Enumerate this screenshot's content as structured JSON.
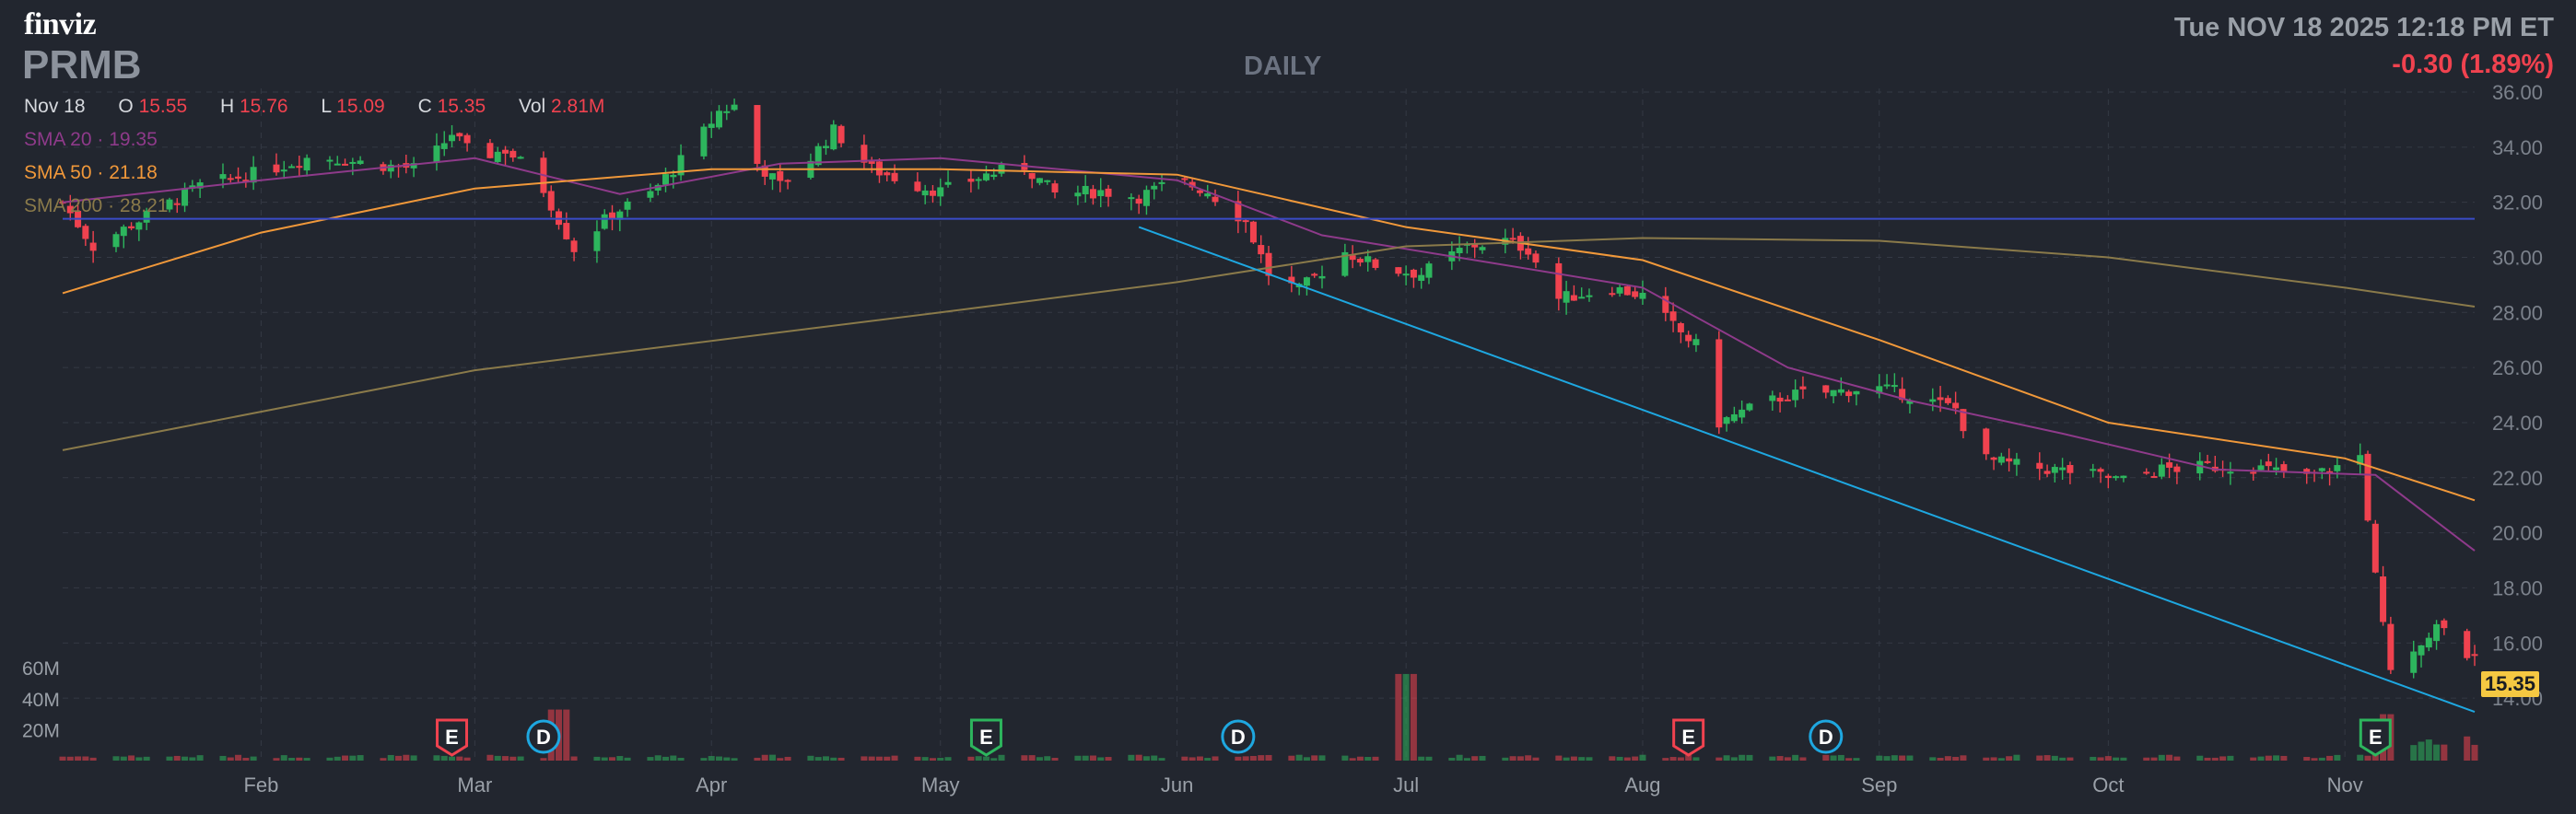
{
  "brand": "finviz",
  "ticker": "PRMB",
  "timeframe": "DAILY",
  "datetime": "Tue NOV 18 2025 12:18 PM ET",
  "change": "-0.30 (1.89%)",
  "ohlc": {
    "date": "Nov 18",
    "o_label": "O",
    "o": "15.55",
    "h_label": "H",
    "h": "15.76",
    "l_label": "L",
    "l": "15.09",
    "c_label": "C",
    "c": "15.35",
    "vol_label": "Vol",
    "vol": "2.81M"
  },
  "sma": [
    {
      "label": "SMA 20",
      "value": "19.35",
      "color": "#8e3a8a"
    },
    {
      "label": "SMA 50",
      "value": "21.18",
      "color": "#f0983a"
    },
    {
      "label": "SMA 200",
      "value": "28.21",
      "color": "#8a7a4a"
    }
  ],
  "last_price_label": "15.35",
  "colors": {
    "up": "#2db55d",
    "down": "#f0424f",
    "trendline": "#1ea7e0",
    "hline": "#3a4bc8",
    "bg": "#22262f"
  },
  "chart_data": {
    "type": "candlestick",
    "ylim": [
      13,
      36
    ],
    "y_ticks": [
      "36.00",
      "34.00",
      "32.00",
      "30.00",
      "28.00",
      "26.00",
      "24.00",
      "22.00",
      "20.00",
      "18.00",
      "16.00",
      "14.00"
    ],
    "volume_ticks": [
      "60M",
      "40M",
      "20M"
    ],
    "x_tick_labels": [
      {
        "label": "Feb",
        "x": "2025-02-01"
      },
      {
        "label": "Mar",
        "x": "2025-03-01"
      },
      {
        "label": "Apr",
        "x": "2025-04-01"
      },
      {
        "label": "May",
        "x": "2025-05-01"
      },
      {
        "label": "Jun",
        "x": "2025-06-01"
      },
      {
        "label": "Jul",
        "x": "2025-07-01"
      },
      {
        "label": "Aug",
        "x": "2025-08-01"
      },
      {
        "label": "Sep",
        "x": "2025-09-01"
      },
      {
        "label": "Oct",
        "x": "2025-10-01"
      },
      {
        "label": "Nov",
        "x": "2025-11-01"
      }
    ],
    "x_range": [
      "2025-01-06",
      "2025-11-18"
    ],
    "close_anchors": [
      [
        "2025-01-06",
        32.0
      ],
      [
        "2025-01-10",
        30.4
      ],
      [
        "2025-01-17",
        31.5
      ],
      [
        "2025-01-24",
        32.6
      ],
      [
        "2025-02-01",
        33.1
      ],
      [
        "2025-02-08",
        33.7
      ],
      [
        "2025-02-15",
        33.4
      ],
      [
        "2025-02-22",
        33.2
      ],
      [
        "2025-02-26",
        34.5
      ],
      [
        "2025-03-01",
        33.6
      ],
      [
        "2025-03-05",
        33.9
      ],
      [
        "2025-03-09",
        33.0
      ],
      [
        "2025-03-14",
        30.3
      ],
      [
        "2025-03-19",
        31.6
      ],
      [
        "2025-03-24",
        32.3
      ],
      [
        "2025-03-29",
        33.8
      ],
      [
        "2025-04-02",
        35.3
      ],
      [
        "2025-04-04",
        35.5
      ],
      [
        "2025-04-07",
        33.4
      ],
      [
        "2025-04-10",
        32.6
      ],
      [
        "2025-04-14",
        33.6
      ],
      [
        "2025-04-17",
        34.6
      ],
      [
        "2025-04-22",
        33.2
      ],
      [
        "2025-04-28",
        32.6
      ],
      [
        "2025-05-01",
        32.4
      ],
      [
        "2025-05-07",
        33.0
      ],
      [
        "2025-05-12",
        33.3
      ],
      [
        "2025-05-16",
        32.3
      ],
      [
        "2025-05-22",
        32.4
      ],
      [
        "2025-05-27",
        32.2
      ],
      [
        "2025-06-01",
        32.8
      ],
      [
        "2025-06-05",
        32.4
      ],
      [
        "2025-06-10",
        31.3
      ],
      [
        "2025-06-13",
        29.4
      ],
      [
        "2025-06-17",
        28.8
      ],
      [
        "2025-06-23",
        30.2
      ],
      [
        "2025-06-28",
        29.6
      ],
      [
        "2025-07-03",
        29.4
      ],
      [
        "2025-07-09",
        30.4
      ],
      [
        "2025-07-14",
        30.6
      ],
      [
        "2025-07-17",
        30.3
      ],
      [
        "2025-07-21",
        28.5
      ],
      [
        "2025-07-28",
        28.9
      ],
      [
        "2025-08-01",
        28.6
      ],
      [
        "2025-08-05",
        27.5
      ],
      [
        "2025-08-08",
        26.8
      ],
      [
        "2025-08-11",
        24.0
      ],
      [
        "2025-08-15",
        24.5
      ],
      [
        "2025-08-20",
        25.0
      ],
      [
        "2025-08-26",
        25.1
      ],
      [
        "2025-08-31",
        25.3
      ],
      [
        "2025-09-05",
        25.0
      ],
      [
        "2025-09-11",
        24.5
      ],
      [
        "2025-09-14",
        22.7
      ],
      [
        "2025-09-20",
        22.4
      ],
      [
        "2025-09-27",
        22.2
      ],
      [
        "2025-10-03",
        21.9
      ],
      [
        "2025-10-08",
        22.3
      ],
      [
        "2025-10-14",
        22.4
      ],
      [
        "2025-10-20",
        22.4
      ],
      [
        "2025-10-27",
        22.0
      ],
      [
        "2025-11-01",
        22.5
      ],
      [
        "2025-11-03",
        22.8
      ],
      [
        "2025-11-05",
        18.4
      ],
      [
        "2025-11-07",
        15.2
      ],
      [
        "2025-11-10",
        15.8
      ],
      [
        "2025-11-13",
        16.6
      ],
      [
        "2025-11-17",
        15.6
      ],
      [
        "2025-11-18",
        15.35
      ]
    ],
    "sma_series": {
      "sma20": [
        [
          "2025-01-06",
          32.0
        ],
        [
          "2025-02-01",
          32.8
        ],
        [
          "2025-03-01",
          33.6
        ],
        [
          "2025-03-20",
          32.3
        ],
        [
          "2025-04-10",
          33.4
        ],
        [
          "2025-05-01",
          33.6
        ],
        [
          "2025-06-01",
          32.8
        ],
        [
          "2025-06-20",
          30.8
        ],
        [
          "2025-07-10",
          29.9
        ],
        [
          "2025-08-01",
          28.9
        ],
        [
          "2025-08-20",
          26.0
        ],
        [
          "2025-09-05",
          24.8
        ],
        [
          "2025-09-25",
          23.6
        ],
        [
          "2025-10-15",
          22.3
        ],
        [
          "2025-11-05",
          22.1
        ],
        [
          "2025-11-18",
          19.35
        ]
      ],
      "sma50": [
        [
          "2025-01-06",
          28.7
        ],
        [
          "2025-02-01",
          30.9
        ],
        [
          "2025-03-01",
          32.5
        ],
        [
          "2025-04-01",
          33.2
        ],
        [
          "2025-05-01",
          33.2
        ],
        [
          "2025-06-01",
          33.0
        ],
        [
          "2025-07-01",
          31.1
        ],
        [
          "2025-08-01",
          29.9
        ],
        [
          "2025-09-01",
          27.0
        ],
        [
          "2025-10-01",
          24.0
        ],
        [
          "2025-11-01",
          22.7
        ],
        [
          "2025-11-18",
          21.18
        ]
      ],
      "sma200": [
        [
          "2025-01-06",
          23.0
        ],
        [
          "2025-03-01",
          25.9
        ],
        [
          "2025-05-01",
          28.0
        ],
        [
          "2025-06-01",
          29.1
        ],
        [
          "2025-07-01",
          30.4
        ],
        [
          "2025-08-01",
          30.7
        ],
        [
          "2025-09-01",
          30.6
        ],
        [
          "2025-10-01",
          30.0
        ],
        [
          "2025-11-01",
          28.9
        ],
        [
          "2025-11-18",
          28.21
        ]
      ]
    },
    "horizontal_line_y": 31.4,
    "trendline": [
      [
        "2025-05-27",
        31.1
      ],
      [
        "2025-11-18",
        13.5
      ]
    ],
    "volume_spikes": [
      [
        "2025-07-01",
        56
      ],
      [
        "2025-03-12",
        33
      ],
      [
        "2025-11-07",
        30
      ]
    ],
    "events": [
      {
        "label": "E",
        "type": "earnings",
        "color": "#f0424f",
        "x": "2025-02-26"
      },
      {
        "label": "D",
        "type": "dividend",
        "color": "#1ea7e0",
        "x": "2025-03-10"
      },
      {
        "label": "E",
        "type": "earnings",
        "color": "#2db55d",
        "x": "2025-05-07"
      },
      {
        "label": "D",
        "type": "dividend",
        "color": "#1ea7e0",
        "x": "2025-06-09"
      },
      {
        "label": "E",
        "type": "earnings",
        "color": "#f0424f",
        "x": "2025-08-07"
      },
      {
        "label": "D",
        "type": "dividend",
        "color": "#1ea7e0",
        "x": "2025-08-25"
      },
      {
        "label": "E",
        "type": "earnings",
        "color": "#2db55d",
        "x": "2025-11-05"
      }
    ]
  }
}
